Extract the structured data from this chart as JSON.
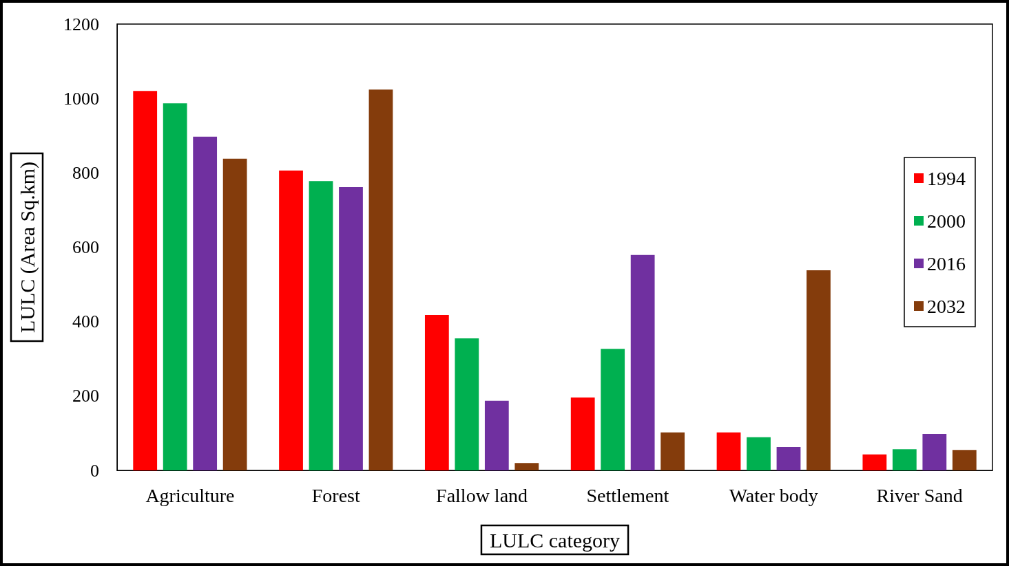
{
  "chart_data": {
    "type": "bar",
    "xlabel": "LULC category",
    "ylabel": "LULC (Area Sq.km)",
    "categories": [
      "Agriculture",
      "Forest",
      "Fallow land",
      "Settlement",
      "Water body",
      "River Sand"
    ],
    "series": [
      {
        "name": "1994",
        "color": "#ff0000",
        "values": [
          1020,
          806,
          418,
          196,
          102,
          43
        ]
      },
      {
        "name": "2000",
        "color": "#00b050",
        "values": [
          987,
          778,
          355,
          327,
          89,
          57
        ]
      },
      {
        "name": "2016",
        "color": "#7030a0",
        "values": [
          897,
          762,
          187,
          579,
          63,
          98
        ]
      },
      {
        "name": "2032",
        "color": "#843c0c",
        "values": [
          838,
          1024,
          20,
          102,
          538,
          55
        ]
      }
    ],
    "ylim": [
      0,
      1200
    ],
    "yticks": [
      0,
      200,
      400,
      600,
      800,
      1000,
      1200
    ],
    "grid": false,
    "legend": "right"
  }
}
